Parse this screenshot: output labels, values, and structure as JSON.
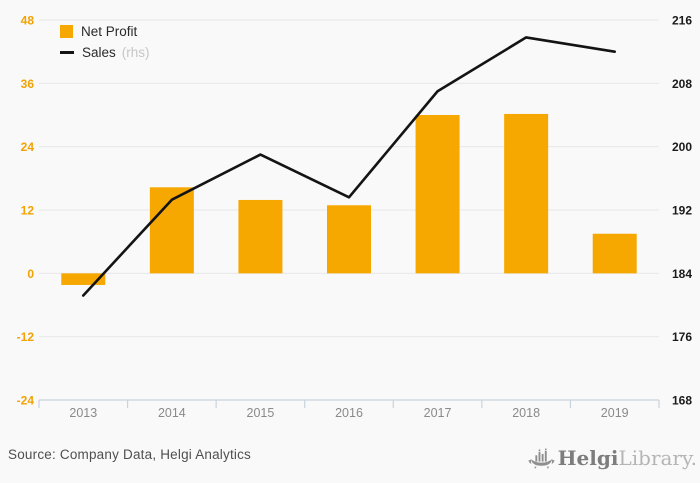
{
  "ui": {
    "legend": {
      "net_profit_label": "Net Profit",
      "sales_label": "Sales",
      "sales_suffix": "(rhs)"
    },
    "footer": {
      "source": "Source: Company Data, Helgi Analytics",
      "logo_helgi": "Helgi",
      "logo_library": "Library."
    }
  },
  "colors": {
    "bar": "#f7a800",
    "line": "#141414",
    "left_axis_labels": "#f2a202",
    "right_axis_labels": "#1a1a1a",
    "gridline": "#e7e7e7",
    "x_axis": "#c9d3dc",
    "x_labels": "#8a8a8a",
    "background": "#f9f9f9"
  },
  "chart_data": {
    "type": "bar",
    "title": "",
    "xlabel": "",
    "ylabel": "",
    "categories": [
      "2013",
      "2014",
      "2015",
      "2016",
      "2017",
      "2018",
      "2019"
    ],
    "series": [
      {
        "name": "Net Profit",
        "type": "bar",
        "axis": "left",
        "values": [
          -2.2,
          16.3,
          13.9,
          12.9,
          30.0,
          30.2,
          7.5
        ]
      },
      {
        "name": "Sales (rhs)",
        "type": "line",
        "axis": "right",
        "values": [
          181.2,
          193.3,
          199.0,
          193.6,
          207.0,
          213.8,
          212.0
        ]
      }
    ],
    "left_axis": {
      "min": -24,
      "max": 48,
      "ticks": [
        48,
        36,
        24,
        12,
        0,
        -12,
        -24
      ]
    },
    "right_axis": {
      "min": 168,
      "max": 216,
      "ticks": [
        216,
        208,
        200,
        192,
        184,
        176,
        168
      ]
    },
    "grid": true,
    "legend_position": "top-left"
  }
}
